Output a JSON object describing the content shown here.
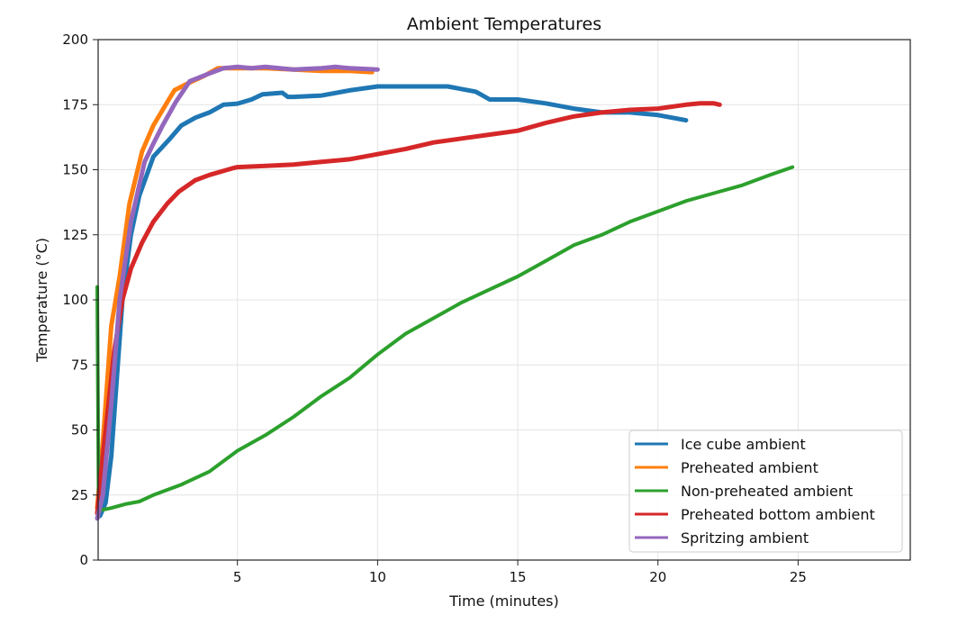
{
  "chart_data": {
    "type": "line",
    "title": "Ambient Temperatures",
    "xlabel": "Time (minutes)",
    "ylabel": "Temperature (°C)",
    "xlim": [
      0,
      29
    ],
    "ylim": [
      0,
      200
    ],
    "xticks": [
      5,
      10,
      15,
      20,
      25
    ],
    "yticks": [
      0,
      25,
      50,
      75,
      100,
      125,
      150,
      175,
      200
    ],
    "grid": true,
    "legend_position": "lower-right",
    "series": [
      {
        "name": "Ice cube ambient",
        "color": "#1f77b4",
        "x": [
          0.1,
          0.3,
          0.5,
          0.7,
          0.9,
          1.2,
          1.5,
          2,
          2.6,
          3,
          3.5,
          4,
          4.5,
          5,
          5.5,
          5.9,
          6.6,
          6.8,
          7,
          8,
          9,
          10,
          10.7,
          11,
          12,
          12.5,
          13,
          13.5,
          14,
          15,
          16,
          17,
          18,
          19,
          20,
          20.5,
          21
        ],
        "y": [
          17,
          22,
          40,
          70,
          100,
          125,
          140,
          155,
          162,
          167,
          170,
          172,
          175,
          175.4,
          177,
          179,
          179.6,
          178,
          178,
          178.5,
          180.5,
          182,
          182,
          182,
          182,
          182,
          181,
          180,
          177,
          177,
          175.5,
          173.5,
          172,
          172,
          171,
          170,
          169
        ]
      },
      {
        "name": "Preheated ambient",
        "color": "#ff7f0e",
        "x": [
          0,
          0.2,
          0.5,
          0.8,
          1.15,
          1.6,
          2,
          2.5,
          2.76,
          3.2,
          3.8,
          4.3,
          5,
          6,
          7,
          8,
          9,
          9.8
        ],
        "y": [
          20,
          45,
          90,
          109,
          137,
          157,
          167,
          176,
          180.6,
          183,
          186,
          189,
          189,
          189,
          188.5,
          188,
          188,
          187.5
        ]
      },
      {
        "name": "Non-preheated ambient",
        "color": "#2ca02c",
        "x": [
          0,
          0.05,
          0.5,
          1,
          1.5,
          2,
          3,
          4,
          5,
          6,
          7,
          8,
          9,
          10,
          11,
          12,
          13,
          14,
          15,
          16,
          17,
          18,
          19,
          20,
          21,
          22,
          23,
          24,
          24.8
        ],
        "y": [
          105,
          19,
          20,
          21.5,
          22.5,
          25,
          29,
          34,
          42,
          48,
          55,
          63,
          70,
          79,
          87,
          93,
          99,
          104,
          109,
          115,
          121,
          125,
          130,
          134,
          138,
          141,
          144,
          148,
          151
        ]
      },
      {
        "name": "Preheated bottom ambient",
        "color": "#d62728",
        "x": [
          0,
          0.2,
          0.4,
          0.6,
          0.9,
          1.2,
          1.6,
          2,
          2.5,
          2.9,
          3.5,
          4,
          4.8,
          5,
          6,
          7,
          8,
          9,
          10,
          11,
          12,
          13,
          14,
          15,
          16,
          17,
          18,
          19,
          20,
          21,
          21.5,
          22,
          22.2
        ],
        "y": [
          18,
          40,
          60,
          80,
          100,
          112,
          122,
          130,
          137,
          141.5,
          146,
          148,
          150.5,
          151,
          151.5,
          152,
          153,
          154,
          156,
          158,
          160.5,
          162,
          163.5,
          165,
          168,
          170.5,
          172,
          173,
          173.5,
          175,
          175.5,
          175.5,
          175
        ]
      },
      {
        "name": "Spritzing ambient",
        "color": "#9467bd",
        "x": [
          0,
          0.2,
          0.5,
          0.8,
          1.2,
          1.69,
          2,
          2.33,
          2.8,
          3.3,
          4,
          4.5,
          5,
          5.5,
          6,
          6.5,
          7,
          8,
          8.5,
          9,
          10
        ],
        "y": [
          16,
          25,
          60,
          100,
          130,
          153,
          160,
          167,
          176,
          184,
          187,
          189,
          189.5,
          189,
          189.5,
          189,
          188.5,
          189,
          189.5,
          189,
          188.5
        ]
      }
    ]
  }
}
